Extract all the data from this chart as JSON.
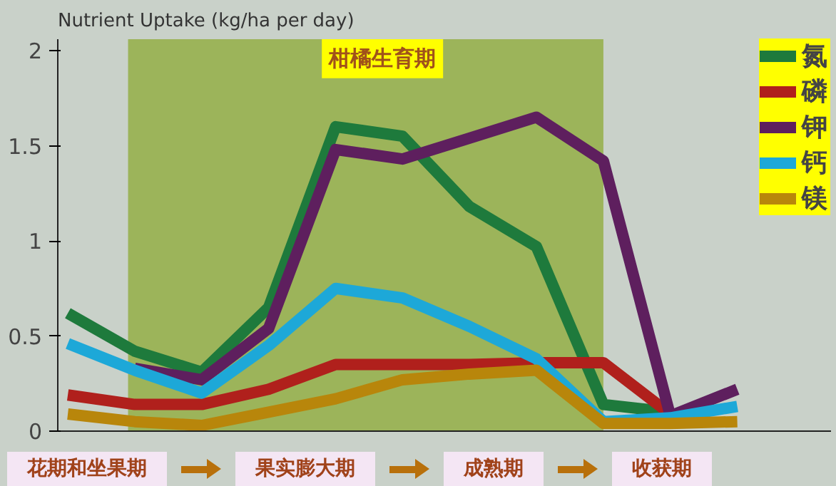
{
  "chart_data": {
    "type": "line",
    "title": "柑橘生育期",
    "ylabel": "Nutrient Uptake (kg/ha per day)",
    "categories": [
      null,
      null,
      null,
      null,
      null,
      null,
      null,
      null,
      null,
      null,
      null
    ],
    "ylim": [
      0,
      2.06
    ],
    "yticks": [
      0,
      0.5,
      1,
      1.5,
      2
    ],
    "tick_labels": "y",
    "grid": false,
    "legend": "top right",
    "line_style": "solid",
    "series": [
      {
        "name": "氮",
        "color": "#1e7a3c",
        "values": [
          0.62,
          0.42,
          0.31,
          0.65,
          1.6,
          1.55,
          1.18,
          0.97,
          0.14,
          0.1,
          null
        ]
      },
      {
        "name": "磷",
        "color": "#b0201c",
        "values": [
          0.19,
          0.14,
          0.14,
          0.22,
          0.35,
          0.35,
          0.35,
          0.36,
          0.36,
          0.09,
          null
        ]
      },
      {
        "name": "钾",
        "color": "#5e1f5e",
        "values": [
          null,
          0.33,
          0.27,
          0.54,
          1.48,
          1.43,
          1.54,
          1.65,
          1.42,
          0.08,
          0.22
        ]
      },
      {
        "name": "钙",
        "color": "#1da8d8",
        "values": [
          0.46,
          0.32,
          0.2,
          0.45,
          0.75,
          0.7,
          0.55,
          0.38,
          0.05,
          0.07,
          0.13
        ]
      },
      {
        "name": "镁",
        "color": "#b8860b",
        "values": [
          0.09,
          0.05,
          0.03,
          0.1,
          0.17,
          0.27,
          0.3,
          0.32,
          0.04,
          0.04,
          0.05
        ]
      }
    ],
    "annotations": [
      "花期和坐果期",
      "果实膨大期",
      "成熟期",
      "收获期"
    ]
  }
}
